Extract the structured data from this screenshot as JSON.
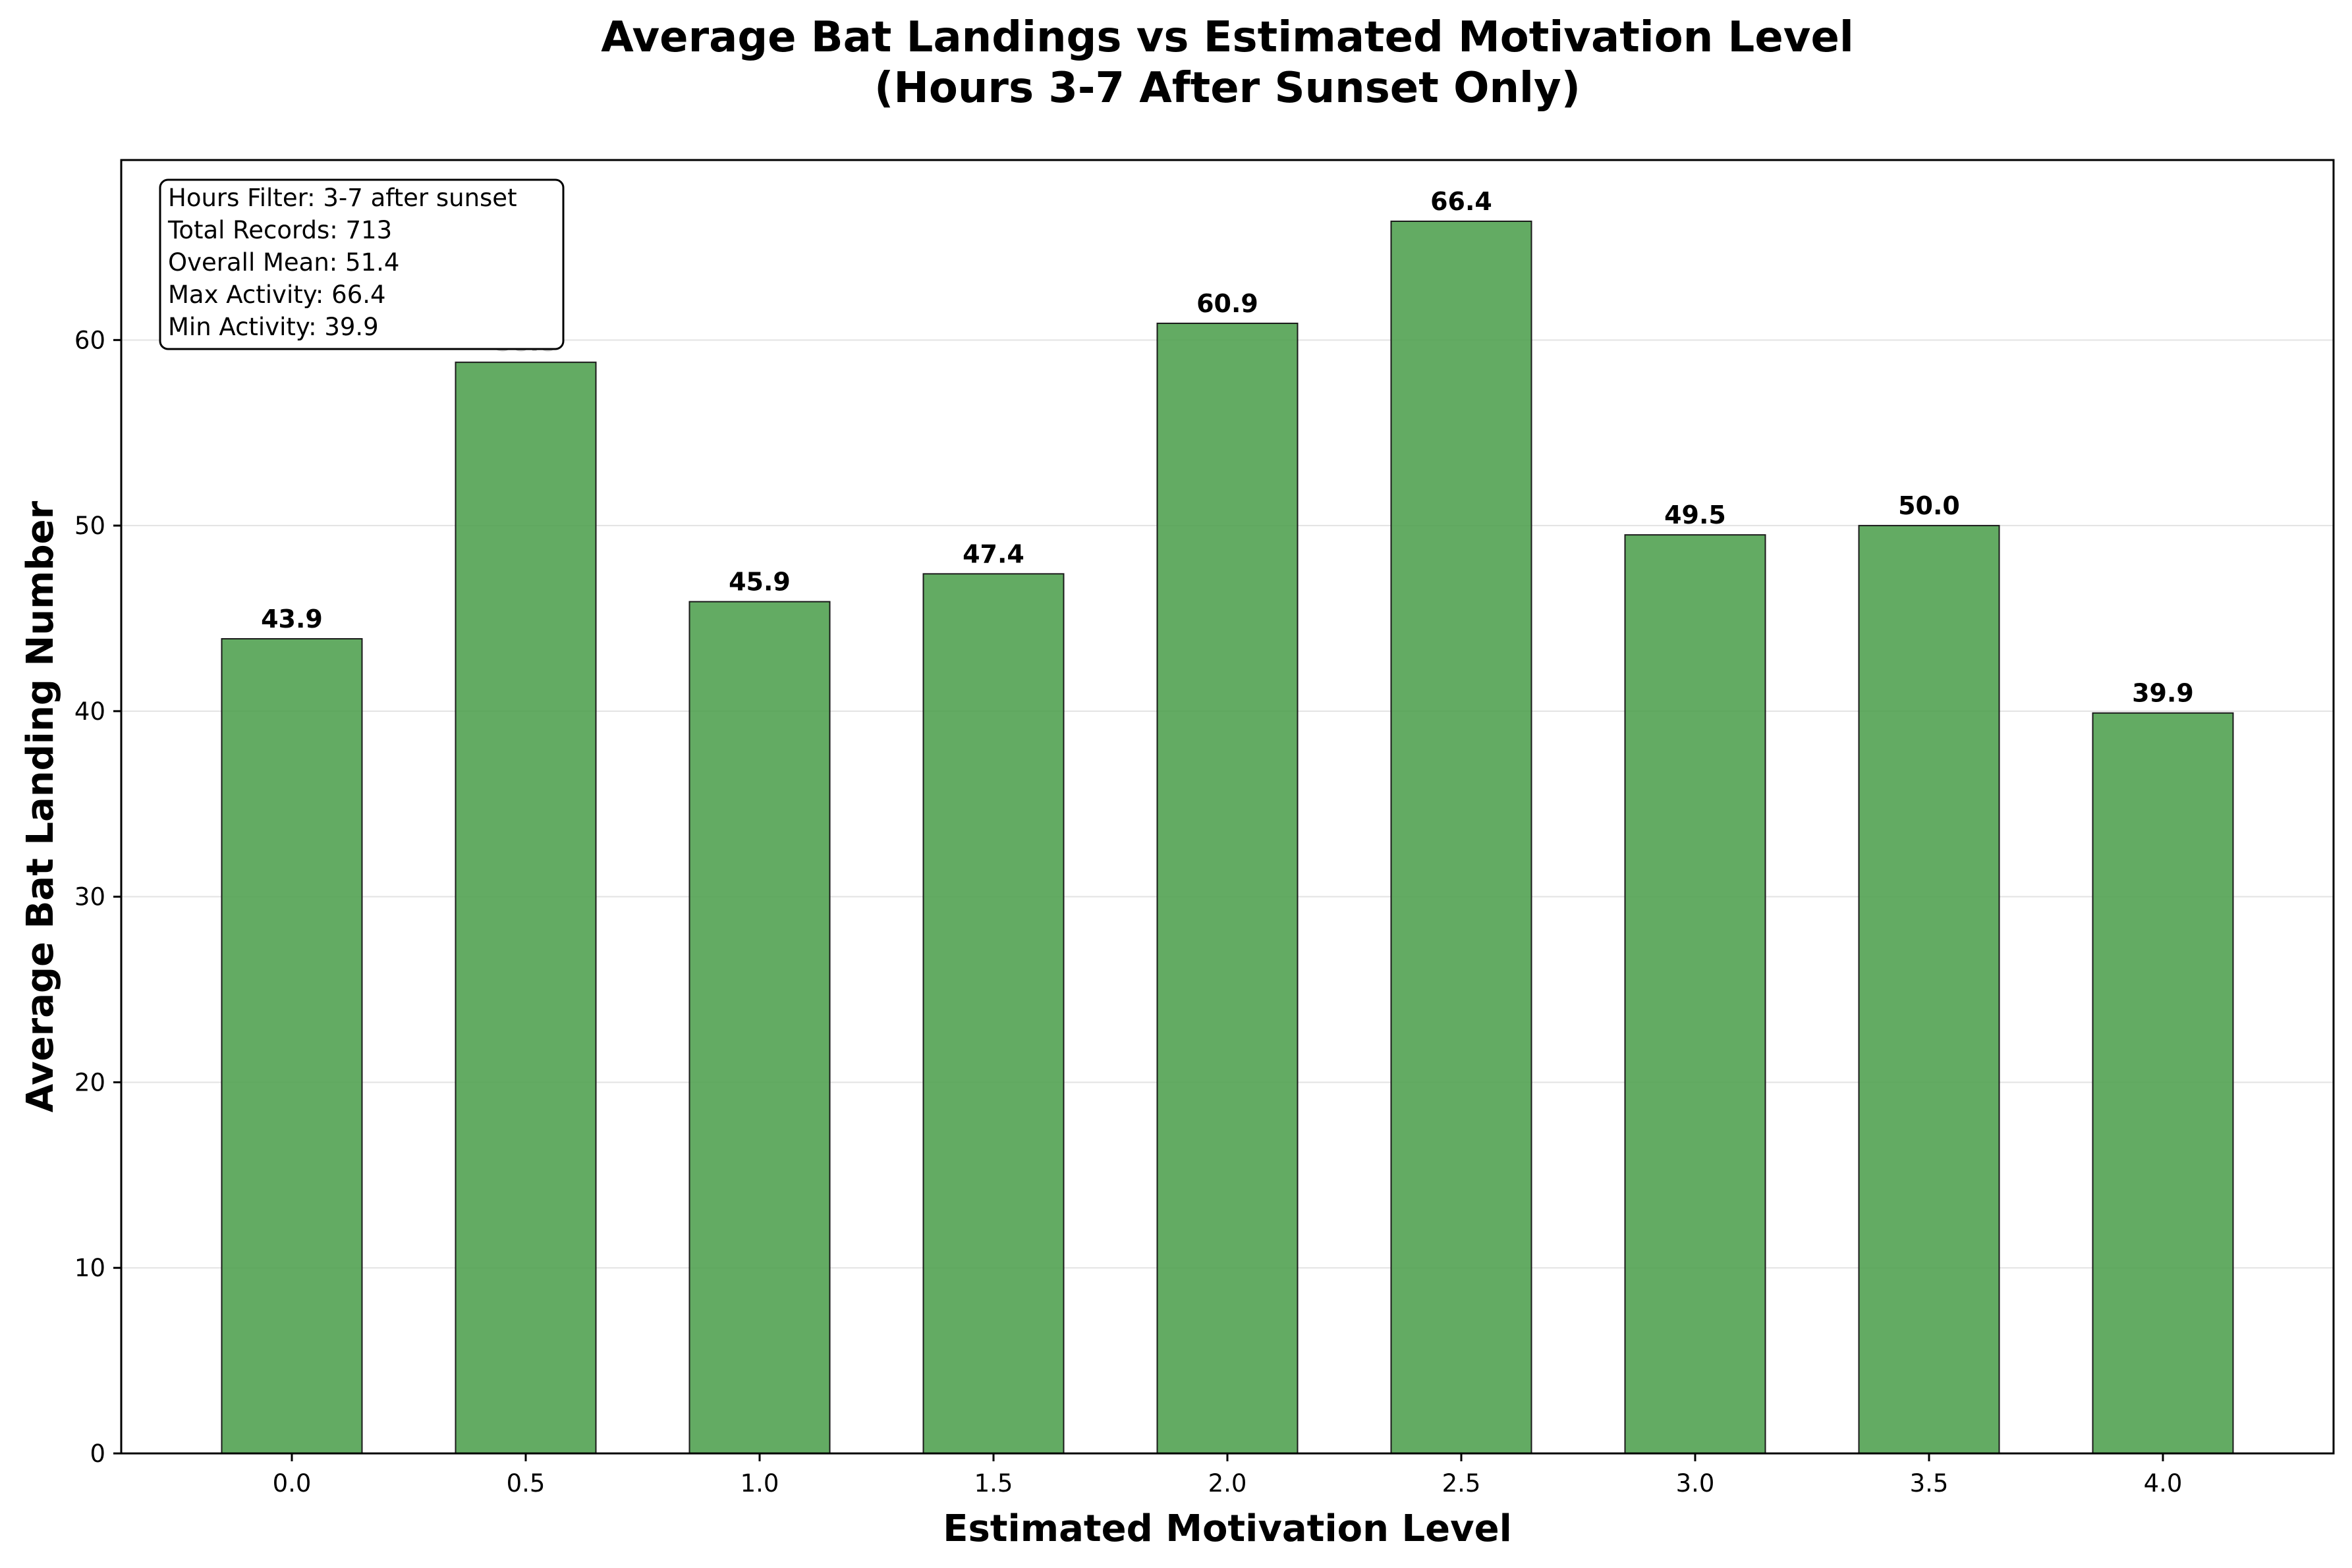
{
  "chart_data": {
    "type": "bar",
    "title_line1": "Average Bat Landings vs Estimated Motivation Level",
    "title_line2": "(Hours 3-7 After Sunset Only)",
    "xlabel": "Estimated Motivation Level",
    "ylabel": "Average Bat Landing Number",
    "categories": [
      "0.0",
      "0.5",
      "1.0",
      "1.5",
      "2.0",
      "2.5",
      "3.0",
      "3.5",
      "4.0"
    ],
    "values": [
      43.9,
      58.8,
      45.9,
      47.4,
      60.9,
      66.4,
      49.5,
      50.0,
      39.9
    ],
    "value_labels": [
      "43.9",
      "58.8",
      "45.9",
      "47.4",
      "60.9",
      "66.4",
      "49.5",
      "50.0",
      "39.9"
    ],
    "ylim": [
      0,
      69.7
    ],
    "yticks": [
      0,
      10,
      20,
      30,
      40,
      50,
      60
    ],
    "grid": "horizontal",
    "bar_color": "#4c9f4c",
    "bar_edge_color": "#1a1a1a",
    "info_box": [
      "Hours Filter: 3-7 after sunset",
      "Total Records: 713",
      "Overall Mean: 51.4",
      "Max Activity: 66.4",
      "Min Activity: 39.9"
    ],
    "info_box_position": "top-left"
  }
}
